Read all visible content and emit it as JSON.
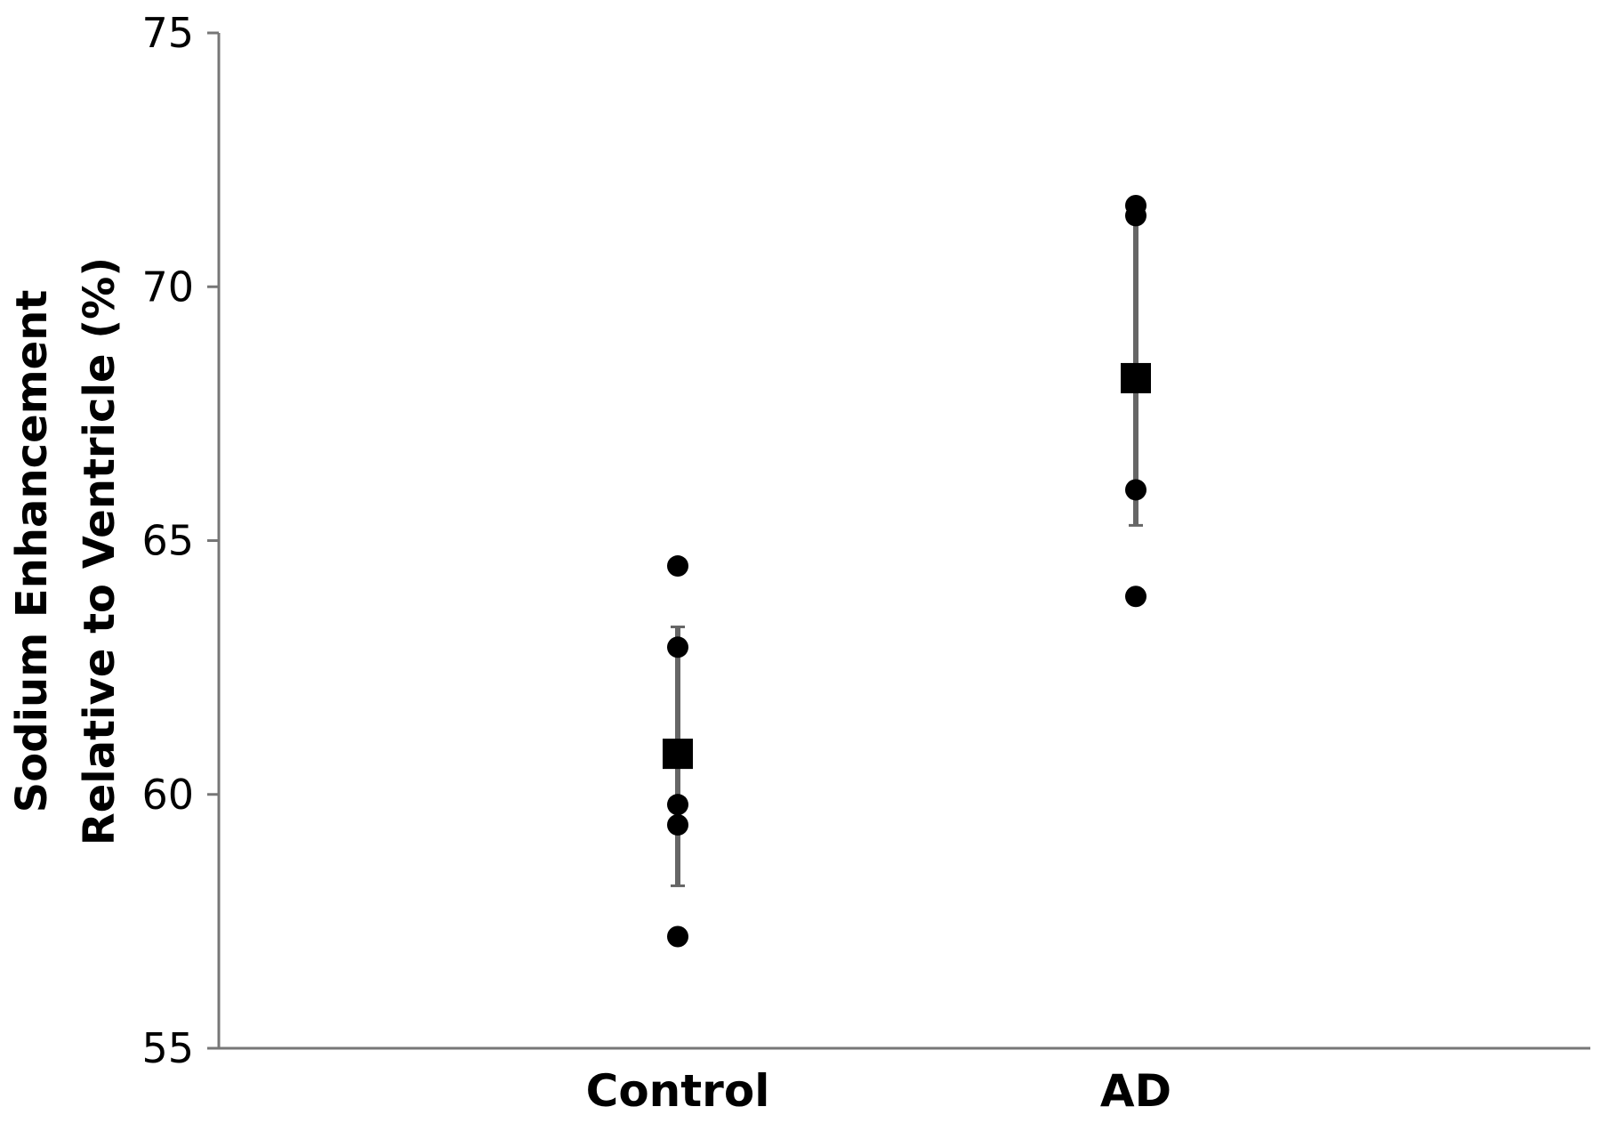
{
  "chart_data": {
    "type": "scatter",
    "title": "",
    "xlabel": "",
    "ylabel_lines": [
      "Sodium Enhancement",
      "Relative to Ventricle (%)"
    ],
    "categories": [
      "Control",
      "AD"
    ],
    "ylim": [
      55,
      75
    ],
    "yticks": [
      "55",
      "60",
      "65",
      "70",
      "75"
    ],
    "grid": false,
    "legend": "none",
    "series": [
      {
        "kind": "individual",
        "marker": "circle",
        "points": [
          {
            "category": "Control",
            "y": 64.5
          },
          {
            "category": "Control",
            "y": 62.9
          },
          {
            "category": "Control",
            "y": 59.8
          },
          {
            "category": "Control",
            "y": 59.4
          },
          {
            "category": "Control",
            "y": 57.2
          },
          {
            "category": "AD",
            "y": 71.6
          },
          {
            "category": "AD",
            "y": 71.4
          },
          {
            "category": "AD",
            "y": 66.0
          },
          {
            "category": "AD",
            "y": 63.9
          }
        ]
      },
      {
        "kind": "mean",
        "marker": "square",
        "points": [
          {
            "category": "Control",
            "y": 60.8,
            "err_low": 58.2,
            "err_high": 63.3
          },
          {
            "category": "AD",
            "y": 68.2,
            "err_low": 65.3,
            "err_high": 71.3
          }
        ]
      }
    ],
    "colors": {
      "axis": "#777777",
      "errorbar": "#666666",
      "marker": "#000000"
    }
  }
}
